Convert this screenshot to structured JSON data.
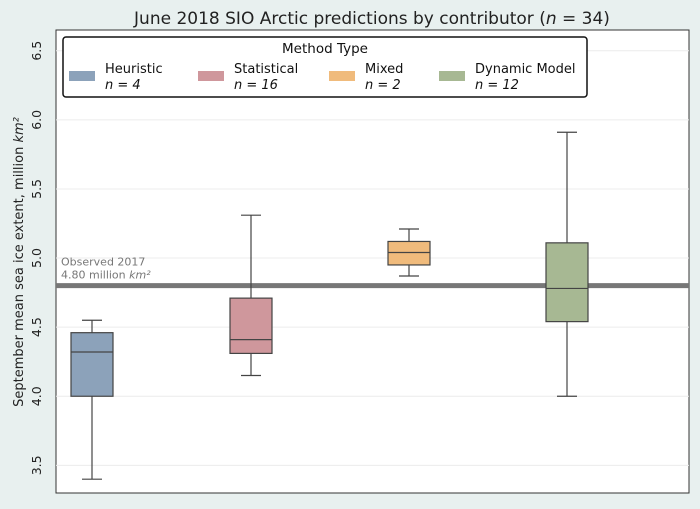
{
  "chart_data": {
    "type": "box",
    "title": "June 2018 SIO Arctic predictions by contributor (n = 34)",
    "ylabel": "September mean sea ice extent, million km²",
    "xlabel": "",
    "ylim": [
      3.3,
      6.65
    ],
    "yticks": [
      "3.5",
      "4.0",
      "4.5",
      "5.0",
      "5.5",
      "6.0",
      "6.5"
    ],
    "grid": true,
    "legend": {
      "title": "Method Type",
      "placement": "top",
      "entries": [
        {
          "name": "Heuristic",
          "n": "n = 4",
          "color": "#8ca2ba"
        },
        {
          "name": "Statistical",
          "n": "n = 16",
          "color": "#cf979c"
        },
        {
          "name": "Mixed",
          "n": "n = 2",
          "color": "#f0bb7c"
        },
        {
          "name": "Dynamic Model",
          "n": "n = 12",
          "color": "#a7b893"
        }
      ]
    },
    "reference_line": {
      "value": 4.8,
      "label_line1": "Observed 2017",
      "label_line2": "4.80 million km²",
      "color": "#777777"
    },
    "boxes": [
      {
        "name": "Heuristic",
        "whisker_low": 3.4,
        "q1": 4.0,
        "median": 4.32,
        "q3": 4.46,
        "whisker_high": 4.55,
        "color": "#8ca2ba"
      },
      {
        "name": "Statistical",
        "whisker_low": 4.15,
        "q1": 4.31,
        "median": 4.41,
        "q3": 4.71,
        "whisker_high": 5.31,
        "color": "#cf979c"
      },
      {
        "name": "Mixed",
        "whisker_low": 4.87,
        "q1": 4.95,
        "median": 5.04,
        "q3": 5.12,
        "whisker_high": 5.21,
        "color": "#f0bb7c"
      },
      {
        "name": "Dynamic Model",
        "whisker_low": 4.0,
        "q1": 4.54,
        "median": 4.78,
        "q3": 5.11,
        "whisker_high": 5.91,
        "color": "#a7b893"
      }
    ]
  }
}
